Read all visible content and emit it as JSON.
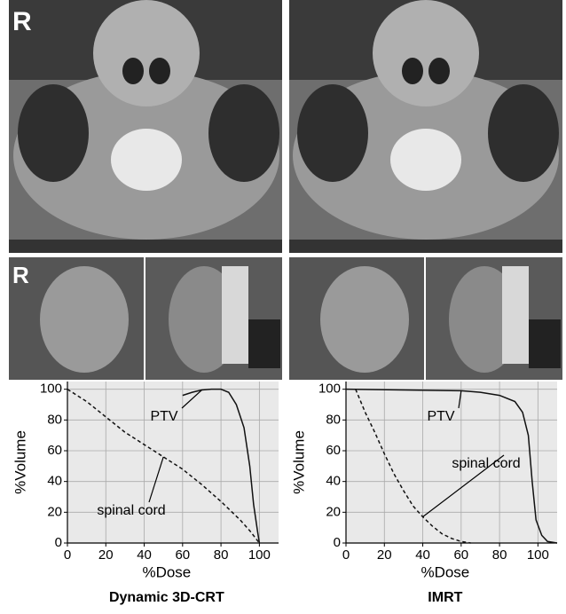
{
  "images": {
    "marker_labels": [
      "R",
      "R"
    ]
  },
  "chart_data": [
    {
      "type": "line",
      "title": "Dynamic 3D-CRT",
      "xlabel": "%Dose",
      "ylabel": "%Volume",
      "xlim": [
        0,
        110
      ],
      "ylim": [
        0,
        105
      ],
      "xticks": [
        0,
        20,
        40,
        60,
        80,
        100
      ],
      "yticks": [
        0,
        20,
        40,
        60,
        80,
        100
      ],
      "grid": true,
      "series": [
        {
          "name": "PTV",
          "color": "#111111",
          "style": "solid",
          "x": [
            60,
            65,
            70,
            75,
            80,
            84,
            88,
            92,
            95,
            97,
            99,
            100
          ],
          "values": [
            96,
            98,
            99.5,
            100,
            100,
            98,
            90,
            75,
            50,
            25,
            8,
            0
          ]
        },
        {
          "name": "spinal cord",
          "color": "#111111",
          "style": "dashed",
          "x": [
            0,
            10,
            20,
            30,
            40,
            50,
            60,
            70,
            80,
            90,
            95,
            100
          ],
          "values": [
            100,
            92,
            82,
            72,
            64,
            56,
            48,
            38,
            27,
            15,
            8,
            0
          ]
        }
      ]
    },
    {
      "type": "line",
      "title": "IMRT",
      "xlabel": "%Dose",
      "ylabel": "%Volume",
      "xlim": [
        0,
        110
      ],
      "ylim": [
        0,
        105
      ],
      "xticks": [
        0,
        20,
        40,
        60,
        80,
        100
      ],
      "yticks": [
        0,
        20,
        40,
        60,
        80,
        100
      ],
      "grid": true,
      "series": [
        {
          "name": "PTV",
          "color": "#111111",
          "style": "solid",
          "x": [
            0,
            60,
            70,
            80,
            88,
            92,
            95,
            97,
            99,
            102,
            105,
            110
          ],
          "values": [
            100,
            99,
            98,
            96,
            92,
            85,
            70,
            40,
            15,
            5,
            1,
            0
          ]
        },
        {
          "name": "spinal cord",
          "color": "#111111",
          "style": "dashed",
          "x": [
            5,
            10,
            15,
            20,
            25,
            30,
            35,
            40,
            45,
            50,
            55,
            60,
            65
          ],
          "values": [
            100,
            85,
            72,
            58,
            45,
            34,
            24,
            17,
            11,
            6,
            3,
            1,
            0
          ]
        }
      ]
    }
  ]
}
